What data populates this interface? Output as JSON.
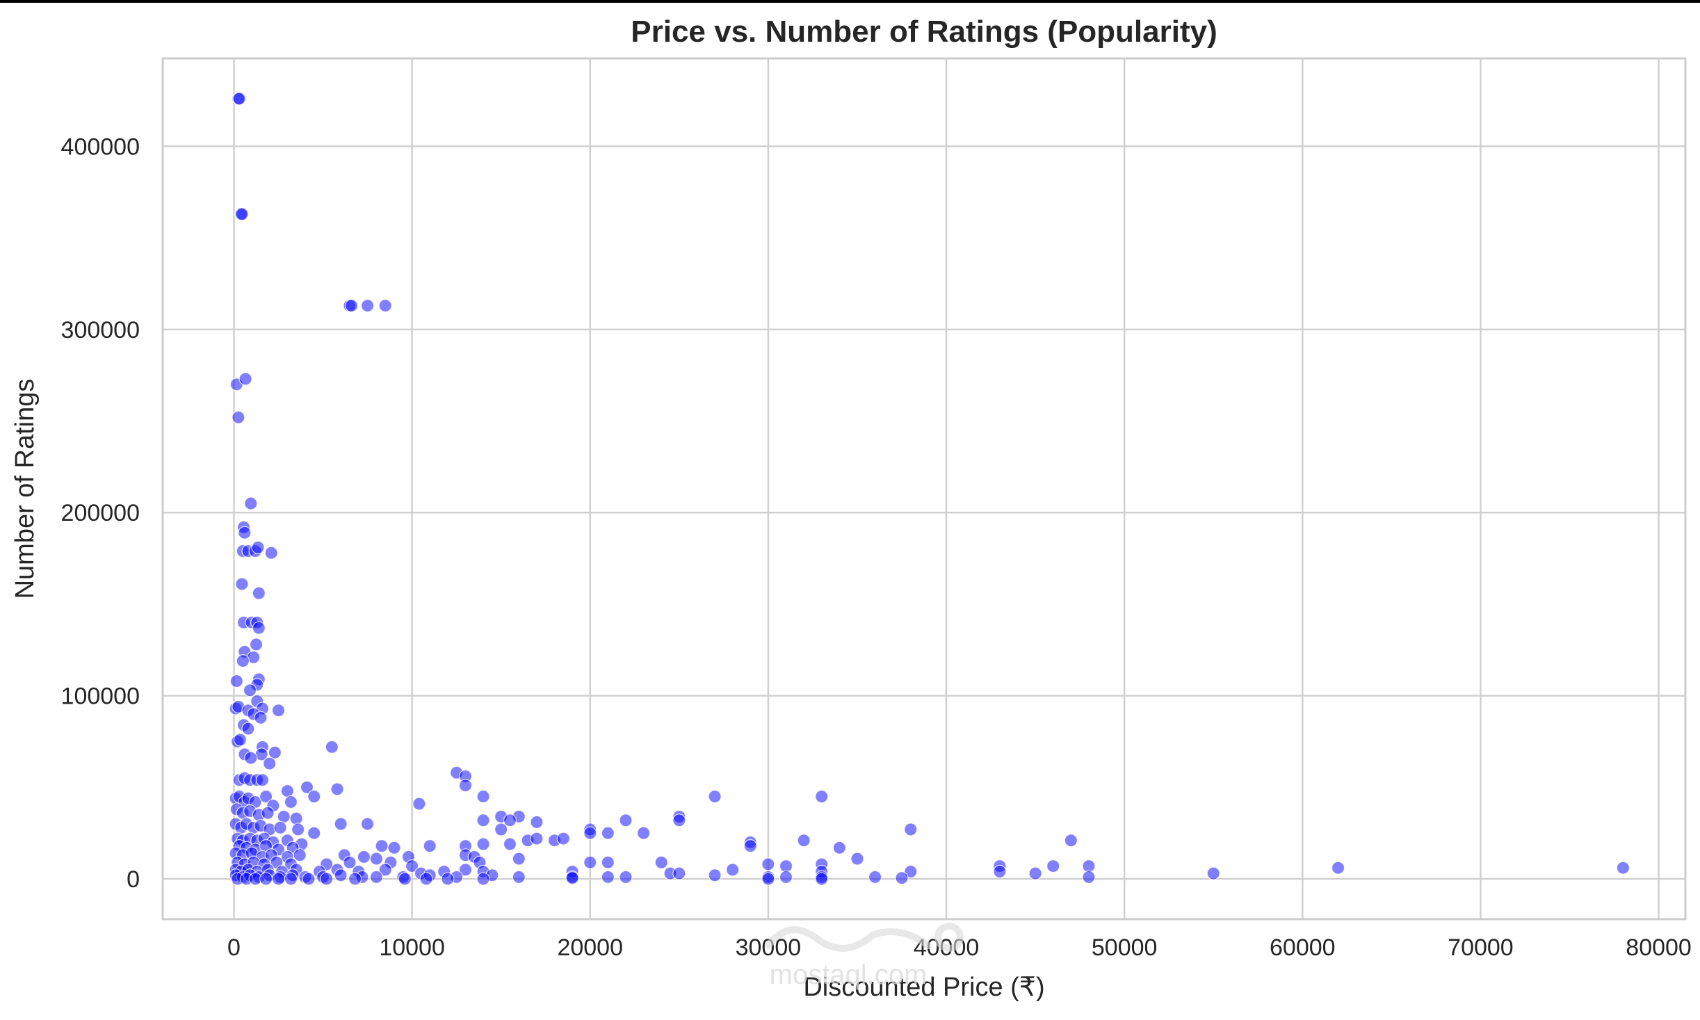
{
  "chart_data": {
    "type": "scatter",
    "title": "Price vs. Number of Ratings (Popularity)",
    "xlabel": "Discounted Price (₹)",
    "ylabel": "Number of Ratings",
    "xlim": [
      -4000,
      81500
    ],
    "ylim": [
      -22000,
      448000
    ],
    "x_ticks": [
      0,
      10000,
      20000,
      30000,
      40000,
      50000,
      60000,
      70000,
      80000
    ],
    "y_ticks": [
      0,
      100000,
      200000,
      300000,
      400000
    ],
    "x_tick_labels": [
      "0",
      "10000",
      "20000",
      "30000",
      "40000",
      "50000",
      "60000",
      "70000",
      "80000"
    ],
    "y_tick_labels": [
      "0",
      "100000",
      "200000",
      "300000",
      "400000"
    ],
    "grid": true,
    "legend": "none",
    "point_color": "#0000ff",
    "point_opacity": 0.5,
    "points": [
      [
        250,
        426000
      ],
      [
        300,
        426000
      ],
      [
        400,
        363000
      ],
      [
        450,
        363000
      ],
      [
        6500,
        313000
      ],
      [
        6600,
        313000
      ],
      [
        7500,
        313000
      ],
      [
        8500,
        313000
      ],
      [
        150,
        270000
      ],
      [
        650,
        273000
      ],
      [
        250,
        252000
      ],
      [
        950,
        205000
      ],
      [
        550,
        192000
      ],
      [
        600,
        189000
      ],
      [
        500,
        179000
      ],
      [
        800,
        179000
      ],
      [
        1200,
        179000
      ],
      [
        1350,
        181000
      ],
      [
        2100,
        178000
      ],
      [
        450,
        161000
      ],
      [
        1400,
        156000
      ],
      [
        550,
        140000
      ],
      [
        1000,
        140000
      ],
      [
        1300,
        140000
      ],
      [
        1400,
        137000
      ],
      [
        1250,
        128000
      ],
      [
        600,
        124000
      ],
      [
        1100,
        121000
      ],
      [
        500,
        119000
      ],
      [
        150,
        108000
      ],
      [
        1400,
        109000
      ],
      [
        1300,
        106000
      ],
      [
        900,
        103000
      ],
      [
        1300,
        97000
      ],
      [
        1600,
        93000
      ],
      [
        2500,
        92000
      ],
      [
        100,
        93000
      ],
      [
        250,
        94000
      ],
      [
        800,
        92000
      ],
      [
        1100,
        90000
      ],
      [
        1500,
        88000
      ],
      [
        550,
        84000
      ],
      [
        800,
        82000
      ],
      [
        200,
        75000
      ],
      [
        350,
        76000
      ],
      [
        1600,
        72000
      ],
      [
        1550,
        68000
      ],
      [
        2300,
        69000
      ],
      [
        600,
        68000
      ],
      [
        950,
        66000
      ],
      [
        2000,
        63000
      ],
      [
        5500,
        72000
      ],
      [
        300,
        54000
      ],
      [
        600,
        55000
      ],
      [
        900,
        54000
      ],
      [
        1300,
        54000
      ],
      [
        1600,
        54000
      ],
      [
        3000,
        48000
      ],
      [
        4100,
        50000
      ],
      [
        5800,
        49000
      ],
      [
        12500,
        58000
      ],
      [
        13000,
        56000
      ],
      [
        13000,
        51000
      ],
      [
        14000,
        45000
      ],
      [
        100,
        44000
      ],
      [
        300,
        45000
      ],
      [
        600,
        42000
      ],
      [
        800,
        44000
      ],
      [
        1200,
        42000
      ],
      [
        1800,
        45000
      ],
      [
        2200,
        40000
      ],
      [
        3200,
        42000
      ],
      [
        4500,
        45000
      ],
      [
        10400,
        41000
      ],
      [
        27000,
        45000
      ],
      [
        33000,
        45000
      ],
      [
        150,
        38000
      ],
      [
        500,
        36000
      ],
      [
        900,
        37000
      ],
      [
        1400,
        35000
      ],
      [
        1900,
        36000
      ],
      [
        2800,
        34000
      ],
      [
        3500,
        33000
      ],
      [
        15000,
        34000
      ],
      [
        16000,
        34000
      ],
      [
        14000,
        32000
      ],
      [
        15500,
        32000
      ],
      [
        17000,
        31000
      ],
      [
        22000,
        32000
      ],
      [
        25000,
        34000
      ],
      [
        25000,
        32000
      ],
      [
        100,
        30000
      ],
      [
        400,
        28000
      ],
      [
        700,
        30000
      ],
      [
        1100,
        28000
      ],
      [
        1500,
        29000
      ],
      [
        2000,
        27000
      ],
      [
        2600,
        28000
      ],
      [
        3600,
        27000
      ],
      [
        4500,
        25000
      ],
      [
        6000,
        30000
      ],
      [
        7500,
        30000
      ],
      [
        15000,
        27000
      ],
      [
        20000,
        27000
      ],
      [
        21000,
        25000
      ],
      [
        23000,
        25000
      ],
      [
        20000,
        25000
      ],
      [
        200,
        22000
      ],
      [
        500,
        21000
      ],
      [
        900,
        22000
      ],
      [
        1300,
        21000
      ],
      [
        1700,
        22000
      ],
      [
        2200,
        20000
      ],
      [
        3000,
        21000
      ],
      [
        3800,
        19000
      ],
      [
        16500,
        21000
      ],
      [
        17000,
        22000
      ],
      [
        18000,
        21000
      ],
      [
        18500,
        22000
      ],
      [
        29000,
        20000
      ],
      [
        32000,
        21000
      ],
      [
        47000,
        21000
      ],
      [
        300,
        18000
      ],
      [
        700,
        17000
      ],
      [
        1200,
        16000
      ],
      [
        1800,
        18000
      ],
      [
        2500,
        16000
      ],
      [
        3300,
        17000
      ],
      [
        8300,
        18000
      ],
      [
        9000,
        17000
      ],
      [
        11000,
        18000
      ],
      [
        13000,
        18000
      ],
      [
        14000,
        19000
      ],
      [
        15500,
        19000
      ],
      [
        29000,
        18000
      ],
      [
        34000,
        17000
      ],
      [
        100,
        14000
      ],
      [
        500,
        13000
      ],
      [
        1000,
        14000
      ],
      [
        1600,
        12000
      ],
      [
        2100,
        13000
      ],
      [
        3000,
        12000
      ],
      [
        3700,
        13000
      ],
      [
        6200,
        13000
      ],
      [
        7300,
        12000
      ],
      [
        8000,
        11000
      ],
      [
        9800,
        12000
      ],
      [
        13000,
        13000
      ],
      [
        13500,
        12000
      ],
      [
        16000,
        11000
      ],
      [
        35000,
        11000
      ],
      [
        38000,
        27000
      ],
      [
        200,
        9000
      ],
      [
        600,
        8000
      ],
      [
        1100,
        9000
      ],
      [
        1700,
        8000
      ],
      [
        2400,
        9000
      ],
      [
        3200,
        8000
      ],
      [
        5200,
        8000
      ],
      [
        6500,
        9000
      ],
      [
        8800,
        9000
      ],
      [
        10000,
        7000
      ],
      [
        13800,
        9000
      ],
      [
        20000,
        9000
      ],
      [
        21000,
        9000
      ],
      [
        24000,
        9000
      ],
      [
        30000,
        8000
      ],
      [
        31000,
        7000
      ],
      [
        33000,
        8000
      ],
      [
        43000,
        7000
      ],
      [
        46000,
        7000
      ],
      [
        48000,
        7000
      ],
      [
        62000,
        6000
      ],
      [
        78000,
        6000
      ],
      [
        100,
        5000
      ],
      [
        400,
        4000
      ],
      [
        800,
        5000
      ],
      [
        1300,
        4000
      ],
      [
        1900,
        5000
      ],
      [
        2700,
        4000
      ],
      [
        3500,
        5000
      ],
      [
        4800,
        4000
      ],
      [
        5800,
        5000
      ],
      [
        7000,
        4000
      ],
      [
        8500,
        5000
      ],
      [
        10500,
        3000
      ],
      [
        11800,
        4000
      ],
      [
        13000,
        5000
      ],
      [
        14000,
        4000
      ],
      [
        19000,
        4000
      ],
      [
        24500,
        3000
      ],
      [
        25000,
        3000
      ],
      [
        28000,
        5000
      ],
      [
        33000,
        4000
      ],
      [
        38000,
        4000
      ],
      [
        43000,
        4000
      ],
      [
        45000,
        3000
      ],
      [
        55000,
        3000
      ],
      [
        100,
        2000
      ],
      [
        500,
        1000
      ],
      [
        900,
        2000
      ],
      [
        1400,
        1000
      ],
      [
        2000,
        2000
      ],
      [
        2600,
        1000
      ],
      [
        3300,
        2000
      ],
      [
        4000,
        1000
      ],
      [
        5000,
        1000
      ],
      [
        6000,
        2000
      ],
      [
        7200,
        1000
      ],
      [
        8000,
        1000
      ],
      [
        9500,
        1000
      ],
      [
        11000,
        2000
      ],
      [
        12500,
        1000
      ],
      [
        14500,
        2000
      ],
      [
        16000,
        1000
      ],
      [
        19000,
        1000
      ],
      [
        21000,
        1000
      ],
      [
        22000,
        1000
      ],
      [
        27000,
        2000
      ],
      [
        30000,
        1000
      ],
      [
        31000,
        1000
      ],
      [
        33000,
        1000
      ],
      [
        36000,
        1000
      ],
      [
        37500,
        500
      ],
      [
        48000,
        1000
      ],
      [
        200,
        0
      ],
      [
        700,
        0
      ],
      [
        1200,
        0
      ],
      [
        1800,
        0
      ],
      [
        2500,
        0
      ],
      [
        3200,
        0
      ],
      [
        4200,
        0
      ],
      [
        5200,
        0
      ],
      [
        6800,
        0
      ],
      [
        9600,
        0
      ],
      [
        10800,
        0
      ],
      [
        12000,
        0
      ],
      [
        14000,
        0
      ],
      [
        19000,
        500
      ],
      [
        30000,
        0
      ],
      [
        33000,
        0
      ]
    ]
  },
  "watermark": {
    "text_latin": "mostaql.com"
  }
}
